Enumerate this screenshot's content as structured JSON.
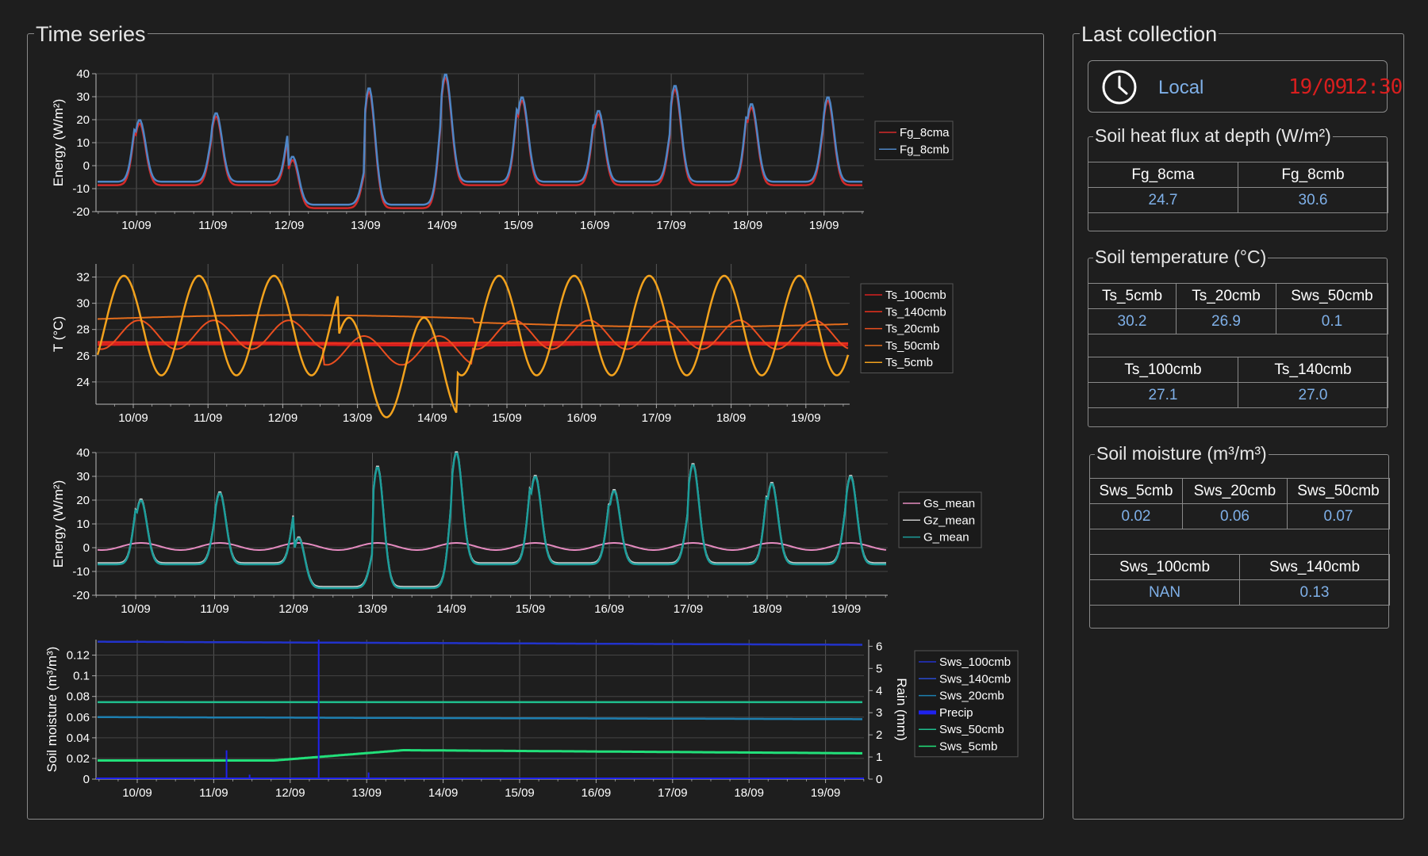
{
  "time_series": {
    "title": "Time series",
    "charts": [
      {
        "type": "line",
        "ylabel": "Energy (W/m²)",
        "yticks": [
          "40",
          "30",
          "20",
          "10",
          "0",
          "-10",
          "-20"
        ],
        "ylim": [
          -20,
          40
        ],
        "xticks": [
          "10/09",
          "11/09",
          "12/09",
          "13/09",
          "14/09",
          "15/09",
          "16/09",
          "17/09",
          "18/09",
          "19/09"
        ],
        "legend": [
          "Fg_8cma",
          "Fg_8cmb"
        ],
        "series": [
          {
            "name": "Fg_8cma",
            "color": "#d42a2a"
          },
          {
            "name": "Fg_8cmb",
            "color": "#4f86c6"
          }
        ]
      },
      {
        "type": "line",
        "ylabel": "T (°C)",
        "yticks": [
          "32",
          "30",
          "28",
          "26",
          "24"
        ],
        "ylim": [
          22.3,
          33
        ],
        "xticks": [
          "10/09",
          "11/09",
          "12/09",
          "13/09",
          "14/09",
          "15/09",
          "16/09",
          "17/09",
          "18/09",
          "19/09"
        ],
        "legend": [
          "Ts_100cmb",
          "Ts_140cmb",
          "Ts_20cmb",
          "Ts_50cmb",
          "Ts_5cmb"
        ],
        "series": [
          {
            "name": "Ts_100cmb",
            "color": "#d61f1f"
          },
          {
            "name": "Ts_140cmb",
            "color": "#e8301c"
          },
          {
            "name": "Ts_20cmb",
            "color": "#ea4e1f"
          },
          {
            "name": "Ts_50cmb",
            "color": "#e46d1c"
          },
          {
            "name": "Ts_5cmb",
            "color": "#f2a21d"
          }
        ]
      },
      {
        "type": "line",
        "ylabel": "Energy (W/m²)",
        "yticks": [
          "40",
          "30",
          "20",
          "10",
          "0",
          "-10",
          "-20"
        ],
        "ylim": [
          -20,
          40
        ],
        "xticks": [
          "10/09",
          "11/09",
          "12/09",
          "13/09",
          "14/09",
          "15/09",
          "16/09",
          "17/09",
          "18/09",
          "19/09"
        ],
        "legend": [
          "Gs_mean",
          "Gz_mean",
          "G_mean"
        ],
        "series": [
          {
            "name": "Gs_mean",
            "color": "#e58bc0"
          },
          {
            "name": "Gz_mean",
            "color": "#c8c8c8"
          },
          {
            "name": "G_mean",
            "color": "#1c9e9b"
          }
        ]
      },
      {
        "type": "line",
        "ylabel": "Soil moisture  (m³/m³)",
        "y2label": "Rain (mm)",
        "yticks": [
          "0.12",
          "0.1",
          "0.08",
          "0.06",
          "0.04",
          "0.02",
          "0"
        ],
        "y2ticks": [
          "6",
          "5",
          "4",
          "3",
          "2",
          "1",
          "0"
        ],
        "ylim": [
          0,
          0.135
        ],
        "y2lim": [
          0,
          6.3
        ],
        "xticks": [
          "10/09",
          "11/09",
          "12/09",
          "13/09",
          "14/09",
          "15/09",
          "16/09",
          "17/09",
          "18/09",
          "19/09"
        ],
        "legend": [
          "Sws_100cmb",
          "Sws_140cmb",
          "Sws_20cmb",
          "Precip",
          "Sws_50cmb",
          "Sws_5cmb"
        ],
        "series": [
          {
            "name": "Sws_100cmb",
            "color": "#2233cc"
          },
          {
            "name": "Sws_140cmb",
            "color": "#2a4ad0"
          },
          {
            "name": "Sws_20cmb",
            "color": "#1d7fb0"
          },
          {
            "name": "Precip",
            "color": "#1f22ee"
          },
          {
            "name": "Sws_50cmb",
            "color": "#1fbf8e"
          },
          {
            "name": "Sws_5cmb",
            "color": "#22e07a"
          }
        ]
      }
    ]
  },
  "last_collection": {
    "title": "Last collection",
    "clock": {
      "label": "Local",
      "date": "19/09",
      "time": "12:30",
      "icon": "clock-icon"
    },
    "heat_flux": {
      "title": "Soil heat flux at depth (W/m²)",
      "headers": [
        "Fg_8cma",
        "Fg_8cmb"
      ],
      "values": [
        "24.7",
        "30.6"
      ]
    },
    "soil_temp": {
      "title": "Soil temperature (°C)",
      "row1_headers": [
        "Ts_5cmb",
        "Ts_20cmb",
        "Sws_50cmb"
      ],
      "row1_values": [
        "30.2",
        "26.9",
        "0.1"
      ],
      "row2_headers": [
        "Ts_100cmb",
        "Ts_140cmb"
      ],
      "row2_values": [
        "27.1",
        "27.0"
      ]
    },
    "soil_moisture": {
      "title": "Soil moisture (m³/m³)",
      "row1_headers": [
        "Sws_5cmb",
        "Sws_20cmb",
        "Sws_50cmb"
      ],
      "row1_values": [
        "0.02",
        "0.06",
        "0.07"
      ],
      "row2_headers": [
        "Sws_100cmb",
        "Sws_140cmb"
      ],
      "row2_values": [
        "NAN",
        "0.13"
      ]
    }
  }
}
